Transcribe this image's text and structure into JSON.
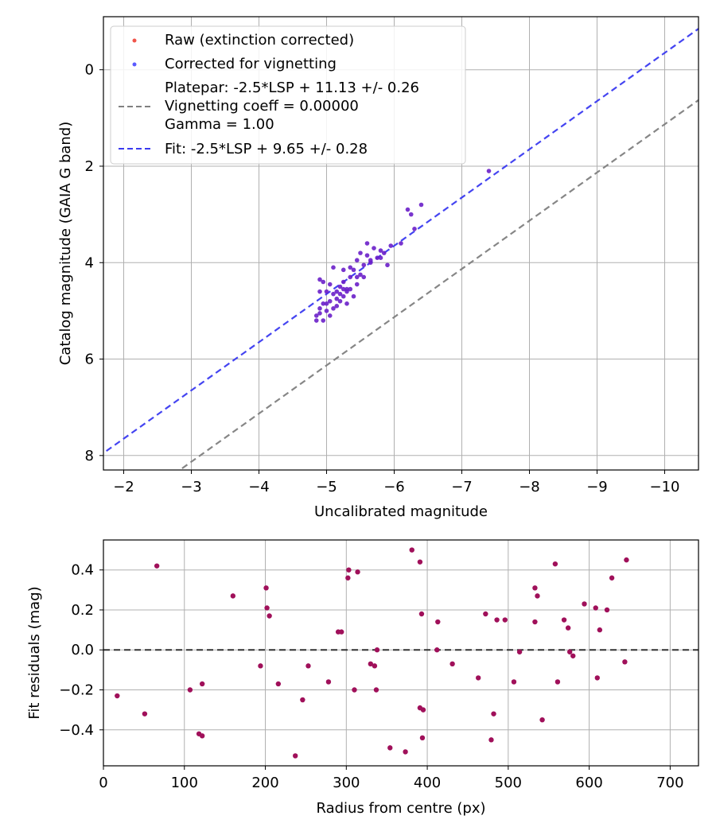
{
  "chart_data": [
    {
      "type": "scatter",
      "xlabel": "Uncalibrated magnitude",
      "ylabel": "Catalog magnitude (GAIA G band)",
      "xlim": [
        -1.7,
        -10.5
      ],
      "ylim": [
        8.3,
        -1.1
      ],
      "x_inverted": true,
      "y_inverted": true,
      "grid": true,
      "legend_position": "top-left",
      "xticks": [
        -2,
        -3,
        -4,
        -5,
        -6,
        -7,
        -8,
        -9,
        -10
      ],
      "xtick_labels": [
        "−2",
        "−3",
        "−4",
        "−5",
        "−6",
        "−7",
        "−8",
        "−9",
        "−10"
      ],
      "yticks": [
        0,
        2,
        4,
        6,
        8
      ],
      "ytick_labels": [
        "0",
        "2",
        "4",
        "6",
        "8"
      ],
      "legend": [
        {
          "label": "Raw (extinction corrected)",
          "kind": "marker",
          "color": "#f0544a"
        },
        {
          "label": "Corrected for vignetting",
          "kind": "marker",
          "color": "#5a5aff"
        },
        {
          "label": "Platepar: -2.5*LSP + 11.13 +/- 0.26\nVignetting coeff = 0.00000\nGamma = 1.00",
          "kind": "dashed",
          "color": "#808080"
        },
        {
          "label": "Fit: -2.5*LSP + 9.65 +/- 0.28",
          "kind": "dashed",
          "color": "#3a3af0"
        }
      ],
      "lines": [
        {
          "name": "Platepar: -2.5*LSP + 11.13 +/- 0.26",
          "slope": 1,
          "intercept": 11.13,
          "color": "#808080",
          "style": "dashed"
        },
        {
          "name": "Fit: -2.5*LSP + 9.65 +/- 0.28",
          "slope": 1,
          "intercept": 9.65,
          "color": "#3a3af0",
          "style": "dashed"
        }
      ],
      "series": [
        {
          "color": "#6a1fc9",
          "points": [
            [
              -7.4,
              2.1
            ],
            [
              -6.4,
              2.8
            ],
            [
              -6.2,
              2.9
            ],
            [
              -6.25,
              3.0
            ],
            [
              -6.3,
              3.3
            ],
            [
              -6.1,
              3.6
            ],
            [
              -5.95,
              3.65
            ],
            [
              -5.6,
              3.6
            ],
            [
              -5.7,
              3.7
            ],
            [
              -5.8,
              3.75
            ],
            [
              -5.85,
              3.8
            ],
            [
              -5.5,
              3.8
            ],
            [
              -5.6,
              3.85
            ],
            [
              -5.75,
              3.9
            ],
            [
              -5.45,
              3.95
            ],
            [
              -5.65,
              3.95
            ],
            [
              -5.8,
              3.9
            ],
            [
              -5.9,
              4.05
            ],
            [
              -5.55,
              4.05
            ],
            [
              -5.35,
              4.1
            ],
            [
              -5.4,
              4.15
            ],
            [
              -5.25,
              4.15
            ],
            [
              -5.1,
              4.1
            ],
            [
              -5.5,
              4.25
            ],
            [
              -5.45,
              4.3
            ],
            [
              -5.35,
              4.3
            ],
            [
              -5.25,
              4.4
            ],
            [
              -5.3,
              4.55
            ],
            [
              -5.2,
              4.5
            ],
            [
              -5.05,
              4.45
            ],
            [
              -4.9,
              4.35
            ],
            [
              -4.95,
              4.4
            ],
            [
              -5.0,
              4.6
            ],
            [
              -5.1,
              4.65
            ],
            [
              -5.15,
              4.6
            ],
            [
              -5.2,
              4.65
            ],
            [
              -5.25,
              4.7
            ],
            [
              -5.3,
              4.6
            ],
            [
              -5.05,
              4.8
            ],
            [
              -5.15,
              4.75
            ],
            [
              -5.3,
              4.85
            ],
            [
              -5.0,
              4.85
            ],
            [
              -4.9,
              4.95
            ],
            [
              -5.1,
              4.95
            ],
            [
              -5.15,
              4.9
            ],
            [
              -5.2,
              4.8
            ],
            [
              -5.0,
              5.0
            ],
            [
              -4.85,
              5.1
            ],
            [
              -4.9,
              5.05
            ],
            [
              -4.95,
              5.2
            ],
            [
              -5.05,
              5.1
            ],
            [
              -4.85,
              5.2
            ],
            [
              -4.9,
              4.6
            ],
            [
              -4.95,
              4.85
            ],
            [
              -5.25,
              4.55
            ],
            [
              -5.45,
              4.45
            ],
            [
              -5.55,
              4.3
            ],
            [
              -5.65,
              4.0
            ],
            [
              -5.35,
              4.55
            ],
            [
              -5.4,
              4.7
            ]
          ]
        }
      ]
    },
    {
      "type": "scatter",
      "xlabel": "Radius from centre (px)",
      "ylabel": "Fit residuals (mag)",
      "xlim": [
        0,
        735
      ],
      "ylim": [
        -0.58,
        0.55
      ],
      "grid": true,
      "xticks": [
        0,
        100,
        200,
        300,
        400,
        500,
        600,
        700
      ],
      "xtick_labels": [
        "0",
        "100",
        "200",
        "300",
        "400",
        "500",
        "600",
        "700"
      ],
      "yticks": [
        -0.4,
        -0.2,
        0.0,
        0.2,
        0.4
      ],
      "ytick_labels": [
        "−0.4",
        "−0.2",
        "0.0",
        "0.2",
        "0.4"
      ],
      "zero_line": {
        "y": 0,
        "color": "#333333",
        "style": "dashed"
      },
      "series": [
        {
          "color": "#a0105a",
          "points": [
            [
              17,
              -0.23
            ],
            [
              51,
              -0.32
            ],
            [
              66,
              0.42
            ],
            [
              107,
              -0.2
            ],
            [
              118,
              -0.42
            ],
            [
              122,
              -0.43
            ],
            [
              122,
              -0.17
            ],
            [
              160,
              0.27
            ],
            [
              194,
              -0.08
            ],
            [
              201,
              0.31
            ],
            [
              202,
              0.21
            ],
            [
              205,
              0.17
            ],
            [
              216,
              -0.17
            ],
            [
              237,
              -0.53
            ],
            [
              246,
              -0.25
            ],
            [
              253,
              -0.08
            ],
            [
              278,
              -0.16
            ],
            [
              290,
              0.09
            ],
            [
              294,
              0.09
            ],
            [
              302,
              0.36
            ],
            [
              303,
              0.4
            ],
            [
              310,
              -0.2
            ],
            [
              314,
              0.39
            ],
            [
              330,
              -0.07
            ],
            [
              335,
              -0.08
            ],
            [
              337,
              -0.2
            ],
            [
              338,
              0.0
            ],
            [
              354,
              -0.49
            ],
            [
              373,
              -0.51
            ],
            [
              381,
              0.5
            ],
            [
              391,
              0.44
            ],
            [
              391,
              -0.29
            ],
            [
              393,
              0.18
            ],
            [
              394,
              -0.44
            ],
            [
              395,
              -0.3
            ],
            [
              412,
              0.0
            ],
            [
              413,
              0.14
            ],
            [
              431,
              -0.07
            ],
            [
              463,
              -0.14
            ],
            [
              472,
              0.18
            ],
            [
              479,
              -0.45
            ],
            [
              482,
              -0.32
            ],
            [
              486,
              0.15
            ],
            [
              496,
              0.15
            ],
            [
              507,
              -0.16
            ],
            [
              514,
              -0.01
            ],
            [
              533,
              0.31
            ],
            [
              533,
              0.14
            ],
            [
              536,
              0.27
            ],
            [
              542,
              -0.35
            ],
            [
              558,
              0.43
            ],
            [
              561,
              -0.16
            ],
            [
              569,
              0.15
            ],
            [
              574,
              0.11
            ],
            [
              576,
              -0.01
            ],
            [
              580,
              -0.03
            ],
            [
              594,
              0.23
            ],
            [
              608,
              0.21
            ],
            [
              610,
              -0.14
            ],
            [
              613,
              0.1
            ],
            [
              622,
              0.2
            ],
            [
              628,
              0.36
            ],
            [
              644,
              -0.06
            ],
            [
              646,
              0.45
            ]
          ]
        }
      ]
    }
  ]
}
